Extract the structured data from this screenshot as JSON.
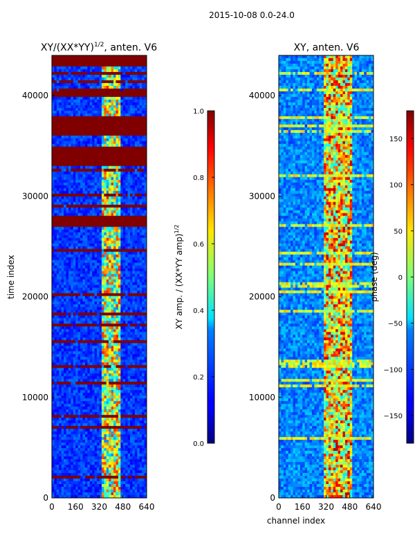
{
  "suptitle": "2015-10-08 0.0-24.0",
  "chart_data": [
    {
      "type": "heatmap",
      "title": "XY/(XX*YY)^1/2, anten. V6",
      "title_main": "XY/(XX*YY)",
      "title_exp": "1/2",
      "title_rest": ", anten. V6",
      "xlabel": "",
      "ylabel": "time index",
      "xlim": [
        0,
        640
      ],
      "ylim": [
        0,
        44000
      ],
      "xticks": [
        0,
        160,
        320,
        480,
        640
      ],
      "yticks": [
        0,
        10000,
        20000,
        30000,
        40000
      ],
      "value_range": [
        0.0,
        1.0
      ],
      "colormap": "jet",
      "colorbar": {
        "label": "XY amp. / (XX*YY amp)^1/2",
        "label_main": "XY amp. / (XX*YY amp)",
        "label_exp": "1/2",
        "ticks": [
          "0.0",
          "0.2",
          "0.4",
          "0.6",
          "0.8",
          "1.0"
        ],
        "tick_values": [
          0.0,
          0.2,
          0.4,
          0.6,
          0.8,
          1.0
        ]
      },
      "flagged_time_ranges": [
        [
          27000,
          28000
        ],
        [
          33000,
          35000
        ],
        [
          36000,
          38000
        ],
        [
          40000,
          40500
        ],
        [
          43000,
          44000
        ]
      ]
    },
    {
      "type": "heatmap",
      "title": "XY, anten. V6",
      "xlabel": "channel index",
      "ylabel": "",
      "xlim": [
        0,
        640
      ],
      "ylim": [
        0,
        44000
      ],
      "xticks": [
        0,
        160,
        320,
        480,
        640
      ],
      "yticks": [
        0,
        10000,
        20000,
        30000,
        40000
      ],
      "value_range": [
        -180,
        180
      ],
      "colormap": "jet",
      "colorbar": {
        "label": "phase (deg)",
        "ticks": [
          "−150",
          "−100",
          "−50",
          "0",
          "50",
          "100",
          "150"
        ],
        "tick_values": [
          -150,
          -100,
          -50,
          0,
          50,
          100,
          150
        ]
      }
    }
  ]
}
